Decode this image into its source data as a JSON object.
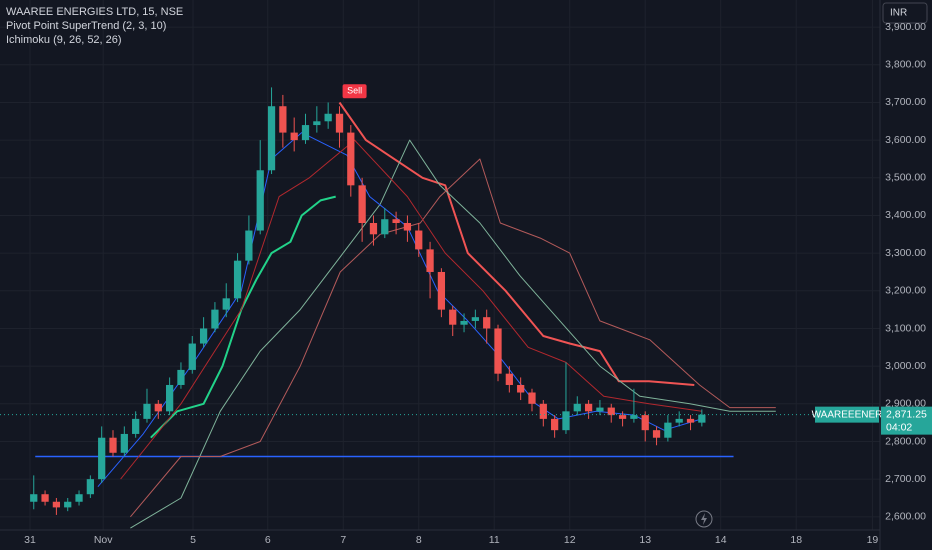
{
  "chart_data": {
    "type": "candlestick",
    "title": "WAAREE ENERGIES LTD, 15, NSE",
    "indicators": [
      "Pivot Point SuperTrend (2, 3, 10)",
      "Ichimoku (9, 26, 52, 26)"
    ],
    "currency": "INR",
    "symbol_tag": "WAAREEENER",
    "last_price_label": "2,871.25",
    "countdown": "04:02",
    "up_color": "#26a69a",
    "down_color": "#ef5350",
    "grid": true,
    "xlim": [
      -0.397,
      11.26
    ],
    "ylim": [
      2565,
      3972
    ],
    "xticks": [
      {
        "value": 0,
        "label": "31"
      },
      {
        "value": 0.97,
        "label": "Nov"
      },
      {
        "value": 2.16,
        "label": "5"
      },
      {
        "value": 3.15,
        "label": "6"
      },
      {
        "value": 4.15,
        "label": "7"
      },
      {
        "value": 5.15,
        "label": "8"
      },
      {
        "value": 6.15,
        "label": "11"
      },
      {
        "value": 7.15,
        "label": "12"
      },
      {
        "value": 8.15,
        "label": "13"
      },
      {
        "value": 9.15,
        "label": "14"
      },
      {
        "value": 10.15,
        "label": "18"
      },
      {
        "value": 11.16,
        "label": "19"
      }
    ],
    "yticks": [
      {
        "value": 2600,
        "label": "2,600.00"
      },
      {
        "value": 2700,
        "label": "2,700.00"
      },
      {
        "value": 2800,
        "label": "2,800.00"
      },
      {
        "value": 2900,
        "label": "2,900.00"
      },
      {
        "value": 3000,
        "label": "3,000.00"
      },
      {
        "value": 3100,
        "label": "3,100.00"
      },
      {
        "value": 3200,
        "label": "3,200.00"
      },
      {
        "value": 3300,
        "label": "3,300.00"
      },
      {
        "value": 3400,
        "label": "3,400.00"
      },
      {
        "value": 3500,
        "label": "3,500.00"
      },
      {
        "value": 3600,
        "label": "3,600.00"
      },
      {
        "value": 3700,
        "label": "3,700.00"
      },
      {
        "value": 3800,
        "label": "3,800.00"
      },
      {
        "value": 3900,
        "label": "3,900.00"
      }
    ],
    "candles": {
      "x": [
        0.05,
        0.2,
        0.35,
        0.5,
        0.65,
        0.8,
        0.95,
        1.1,
        1.25,
        1.4,
        1.55,
        1.7,
        1.85,
        2.0,
        2.15,
        2.3,
        2.45,
        2.6,
        2.75,
        2.9,
        3.05,
        3.2,
        3.35,
        3.5,
        3.65,
        3.8,
        3.95,
        4.1,
        4.25,
        4.4,
        4.55,
        4.7,
        4.85,
        5.0,
        5.15,
        5.3,
        5.45,
        5.6,
        5.75,
        5.9,
        6.05,
        6.2,
        6.35,
        6.5,
        6.65,
        6.8,
        6.95,
        7.1,
        7.25,
        7.4,
        7.55,
        7.7,
        7.85,
        8.0,
        8.15,
        8.3,
        8.45,
        8.6,
        8.75,
        8.9
      ],
      "open": [
        2640,
        2660,
        2640,
        2625,
        2640,
        2660,
        2700,
        2810,
        2770,
        2820,
        2860,
        2900,
        2880,
        2950,
        2990,
        3060,
        3100,
        3150,
        3180,
        3280,
        3360,
        3520,
        3690,
        3620,
        3600,
        3640,
        3650,
        3670,
        3620,
        3480,
        3380,
        3350,
        3390,
        3380,
        3360,
        3310,
        3250,
        3150,
        3110,
        3120,
        3130,
        3100,
        2980,
        2950,
        2930,
        2900,
        2860,
        2830,
        2880,
        2900,
        2880,
        2890,
        2870,
        2860,
        2870,
        2830,
        2810,
        2850,
        2860,
        2850
      ],
      "high": [
        2710,
        2670,
        2650,
        2650,
        2670,
        2710,
        2840,
        2830,
        2840,
        2880,
        2940,
        2910,
        2970,
        3010,
        3080,
        3130,
        3170,
        3220,
        3300,
        3400,
        3600,
        3740,
        3720,
        3660,
        3670,
        3690,
        3700,
        3690,
        3640,
        3500,
        3400,
        3420,
        3410,
        3400,
        3380,
        3330,
        3260,
        3160,
        3140,
        3150,
        3150,
        3110,
        3000,
        2970,
        2940,
        2910,
        2870,
        3010,
        2920,
        2910,
        2910,
        2900,
        2880,
        2940,
        2880,
        2840,
        2870,
        2880,
        2870,
        2885
      ],
      "low": [
        2620,
        2630,
        2605,
        2615,
        2630,
        2650,
        2690,
        2760,
        2760,
        2810,
        2850,
        2860,
        2870,
        2940,
        2980,
        3050,
        3090,
        3130,
        3170,
        3270,
        3350,
        3510,
        3580,
        3570,
        3590,
        3620,
        3630,
        3580,
        3450,
        3330,
        3320,
        3340,
        3350,
        3330,
        3290,
        3180,
        3130,
        3080,
        3090,
        3100,
        3060,
        2960,
        2930,
        2910,
        2880,
        2840,
        2810,
        2820,
        2870,
        2860,
        2870,
        2850,
        2840,
        2850,
        2800,
        2790,
        2800,
        2840,
        2830,
        2840
      ],
      "close": [
        2660,
        2640,
        2625,
        2640,
        2660,
        2700,
        2810,
        2770,
        2820,
        2860,
        2900,
        2880,
        2950,
        2990,
        3060,
        3100,
        3150,
        3180,
        3280,
        3360,
        3520,
        3690,
        3620,
        3600,
        3640,
        3650,
        3670,
        3620,
        3480,
        3380,
        3350,
        3390,
        3380,
        3360,
        3310,
        3250,
        3150,
        3110,
        3120,
        3130,
        3100,
        2980,
        2950,
        2930,
        2900,
        2860,
        2830,
        2880,
        2900,
        2880,
        2890,
        2870,
        2860,
        2870,
        2830,
        2810,
        2850,
        2860,
        2850,
        2871.25
      ]
    },
    "lines": [
      {
        "color": "#22d38a",
        "width": 2,
        "x": [
          1.6,
          1.95,
          2.3,
          2.55,
          2.8,
          3.0,
          3.2,
          3.45,
          3.6,
          3.85,
          4.05
        ],
        "values": [
          2810,
          2880,
          2900,
          3000,
          3150,
          3230,
          3300,
          3330,
          3400,
          3440,
          3450
        ]
      },
      {
        "color": "#f05454",
        "width": 2,
        "x": [
          4.1,
          4.45,
          5.2,
          5.5,
          5.8,
          6.3,
          6.8,
          7.15,
          7.55,
          7.8,
          8.2,
          8.8
        ],
        "values": [
          3700,
          3600,
          3500,
          3480,
          3300,
          3200,
          3080,
          3060,
          3040,
          2960,
          2960,
          2950
        ]
      },
      {
        "color": "#7fb39a",
        "width": 1,
        "x": [
          1.33,
          2.0,
          2.52,
          3.05,
          3.58,
          4.11,
          4.64,
          5.03,
          5.43,
          5.96,
          6.49,
          7.02,
          7.55,
          8.08,
          8.74,
          9.27,
          9.88
        ],
        "values": [
          2570,
          2650,
          2880,
          3040,
          3150,
          3290,
          3430,
          3600,
          3480,
          3380,
          3240,
          3120,
          3000,
          2920,
          2900,
          2880,
          2880
        ]
      },
      {
        "color": "#b35a5a",
        "width": 1,
        "x": [
          1.33,
          2.0,
          2.52,
          3.05,
          3.58,
          4.11,
          4.64,
          5.17,
          5.43,
          5.96,
          6.23,
          6.76,
          7.15,
          7.55,
          8.21,
          8.87,
          9.27,
          9.88
        ],
        "values": [
          2600,
          2760,
          2760,
          2800,
          3000,
          3250,
          3350,
          3380,
          3450,
          3550,
          3380,
          3340,
          3300,
          3120,
          3070,
          2950,
          2890,
          2890
        ]
      },
      {
        "color": "#2962ff",
        "width": 1,
        "x": [
          0.9,
          1.5,
          2.2,
          2.8,
          3.2,
          3.6,
          4.2,
          4.5,
          5.0,
          5.4,
          5.8,
          6.2,
          6.7,
          7.0,
          7.5,
          8.0,
          8.4,
          8.9
        ],
        "values": [
          2680,
          2820,
          3020,
          3200,
          3550,
          3620,
          3560,
          3450,
          3370,
          3200,
          3120,
          3030,
          2900,
          2860,
          2880,
          2870,
          2830,
          2860
        ]
      },
      {
        "color": "#b2282e",
        "width": 1,
        "x": [
          1.2,
          2.0,
          2.8,
          3.3,
          3.7,
          4.3,
          5.0,
          5.5,
          6.0,
          6.6,
          7.1,
          7.6,
          8.2,
          8.9
        ],
        "values": [
          2700,
          2900,
          3150,
          3450,
          3500,
          3600,
          3450,
          3300,
          3200,
          3050,
          3010,
          2920,
          2900,
          2880
        ]
      }
    ],
    "hline": {
      "y": 2760,
      "x": [
        0.07,
        9.32
      ],
      "color": "#2962ff"
    },
    "sell_label": {
      "text": "Sell",
      "x": 4.3,
      "y": 3690
    }
  }
}
